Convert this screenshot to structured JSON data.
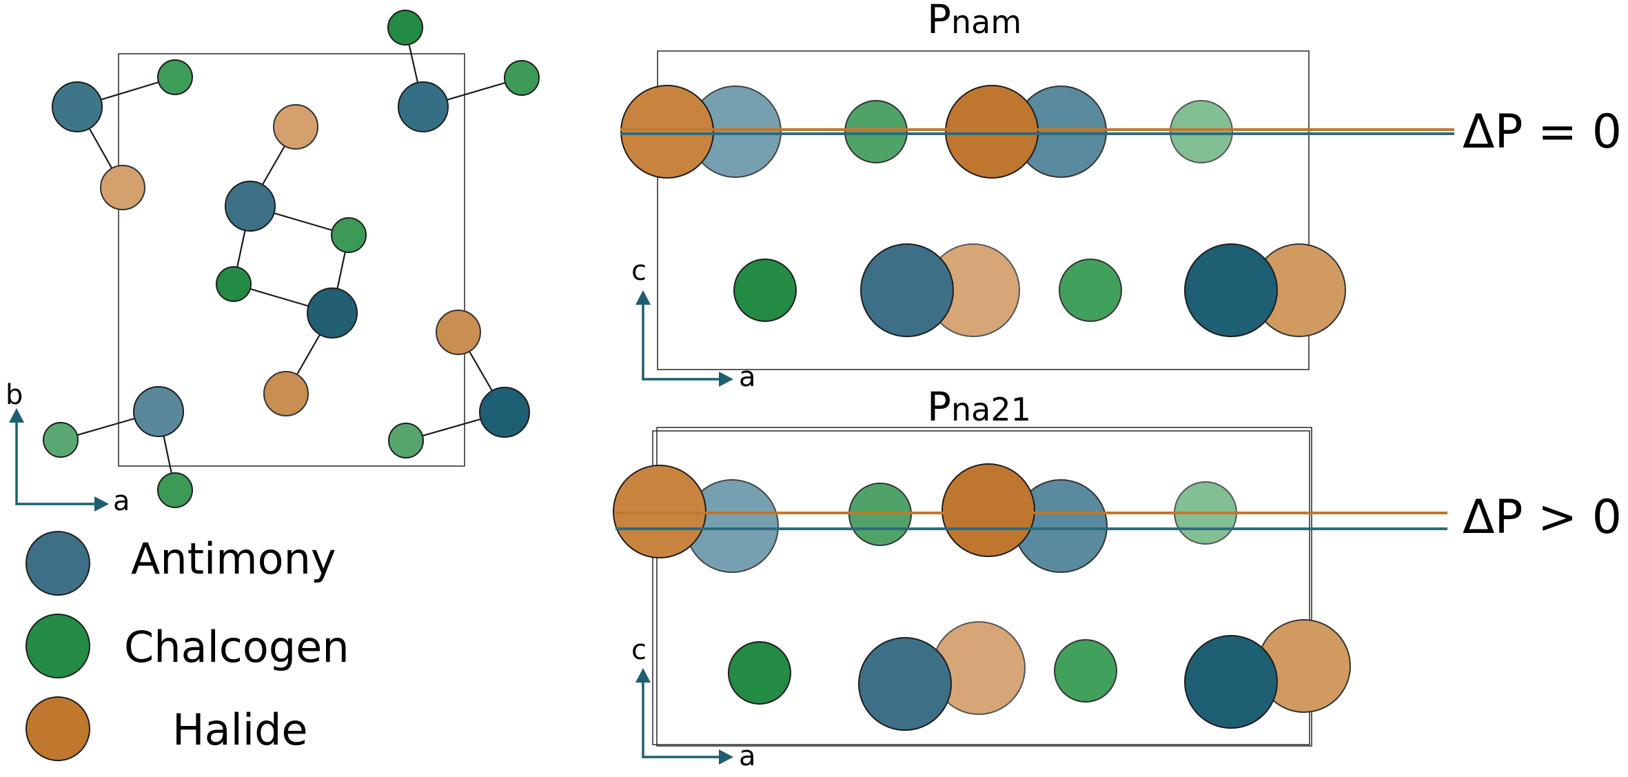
{
  "colors": {
    "antimony": "#3d7086",
    "chalcogen": "#238b43",
    "halide": "#c0782e",
    "axis": "#1f5e70",
    "orange_line": "#c0782e",
    "teal_line": "#2d6b7d"
  },
  "legend": [
    {
      "key": "antimony",
      "label": "Antimony"
    },
    {
      "key": "chalcogen",
      "label": "Chalcogen"
    },
    {
      "key": "halide",
      "label": "Halide"
    }
  ],
  "left_panel": {
    "axis_vertical": "b",
    "axis_horizontal": "a"
  },
  "panel_top": {
    "title_main": "P",
    "title_sub": "nam",
    "annotation": "ΔP = 0",
    "axis_vertical": "c",
    "axis_horizontal": "a"
  },
  "panel_bottom": {
    "title_main": "P",
    "title_sub": "na21",
    "annotation": "ΔP > 0",
    "axis_vertical": "c",
    "axis_horizontal": "a"
  }
}
